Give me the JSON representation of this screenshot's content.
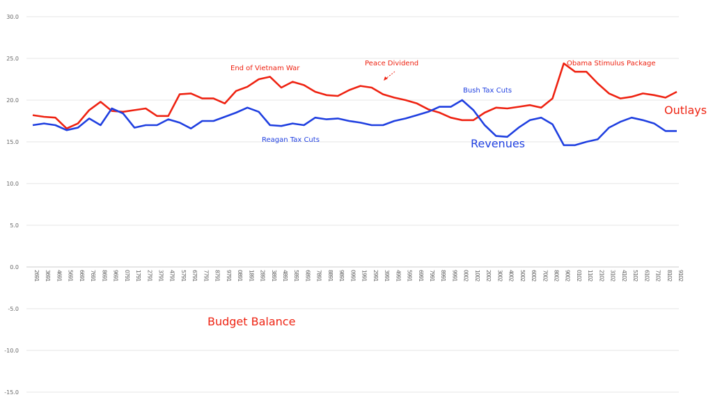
{
  "chart_data": {
    "type": "line",
    "ylim": [
      -15,
      30
    ],
    "yticks": [
      "30.0",
      "25.0",
      "20.0",
      "15.0",
      "10.0",
      "5.0",
      "0.0",
      "-5.0",
      "-10.0",
      "-15.0"
    ],
    "ytick_values": [
      30,
      25,
      20,
      15,
      10,
      5,
      0,
      -5,
      -10,
      -15
    ],
    "grid": true,
    "x": [
      1962,
      1963,
      1964,
      1965,
      1966,
      1967,
      1968,
      1969,
      1970,
      1971,
      1972,
      1973,
      1974,
      1975,
      1976,
      1977,
      1978,
      1979,
      1980,
      1981,
      1982,
      1983,
      1984,
      1985,
      1986,
      1987,
      1988,
      1989,
      1990,
      1991,
      1992,
      1993,
      1994,
      1995,
      1996,
      1997,
      1998,
      1999,
      2000,
      2001,
      2002,
      2003,
      2004,
      2005,
      2006,
      2007,
      2008,
      2009,
      2010,
      2011,
      2012,
      2013,
      2014,
      2015,
      2016,
      2017,
      2018,
      2019
    ],
    "series": [
      {
        "name": "Outlays",
        "color": "#ee2211",
        "values": [
          18.2,
          18.0,
          17.9,
          16.6,
          17.2,
          18.8,
          19.8,
          18.7,
          18.6,
          18.8,
          19.0,
          18.1,
          18.1,
          20.7,
          20.8,
          20.2,
          20.2,
          19.6,
          21.1,
          21.6,
          22.5,
          22.8,
          21.5,
          22.2,
          21.8,
          21.0,
          20.6,
          20.5,
          21.2,
          21.7,
          21.5,
          20.7,
          20.3,
          20.0,
          19.6,
          18.9,
          18.5,
          17.9,
          17.6,
          17.6,
          18.5,
          19.1,
          19.0,
          19.2,
          19.4,
          19.1,
          20.2,
          24.4,
          23.4,
          23.4,
          22.0,
          20.8,
          20.2,
          20.4,
          20.8,
          20.6,
          20.3,
          21.0
        ]
      },
      {
        "name": "Revenues",
        "color": "#1f3fe0",
        "values": [
          17.0,
          17.2,
          17.0,
          16.4,
          16.7,
          17.8,
          17.0,
          19.0,
          18.4,
          16.7,
          17.0,
          17.0,
          17.7,
          17.3,
          16.6,
          17.5,
          17.5,
          18.0,
          18.5,
          19.1,
          18.6,
          17.0,
          16.9,
          17.2,
          17.0,
          17.9,
          17.7,
          17.8,
          17.5,
          17.3,
          17.0,
          17.0,
          17.5,
          17.8,
          18.2,
          18.6,
          19.2,
          19.2,
          20.0,
          18.8,
          17.0,
          15.7,
          15.6,
          16.7,
          17.6,
          17.9,
          17.1,
          14.6,
          14.6,
          15.0,
          15.3,
          16.7,
          17.4,
          17.9,
          17.6,
          17.2,
          16.3,
          16.3
        ]
      }
    ],
    "annotations": {
      "vietnam": "End of Vietnam War",
      "peace": "Peace Dividend",
      "bush": "Bush Tax Cuts",
      "obama": "Obama Stimulus Package",
      "reagan": "Reagan Tax Cuts",
      "outlays": "Outlays",
      "revenues": "Revenues",
      "balance": "Budget Balance"
    }
  }
}
